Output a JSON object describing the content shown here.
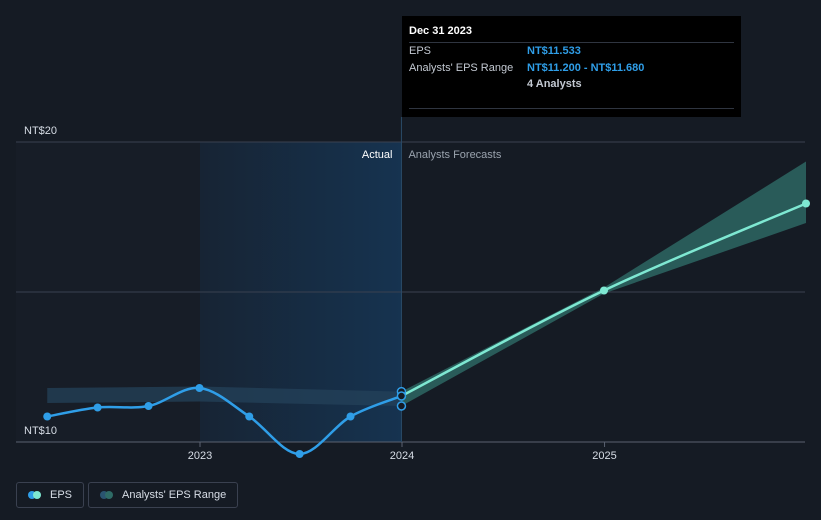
{
  "tooltip": {
    "date": "Dec 31 2023",
    "eps_label": "EPS",
    "eps_value": "NT$11.533",
    "range_label": "Analysts' EPS Range",
    "range_value": "NT$11.200 - NT$11.680",
    "analysts": "4 Analysts"
  },
  "legend": {
    "eps_label": "EPS",
    "range_label": "Analysts' EPS Range"
  },
  "colors": {
    "background": "#151b24",
    "actual_line": "#2f9ee8",
    "forecast_line": "#7ee8d2",
    "forecast_band": "#2e6b66",
    "actual_band": "#1c3a52",
    "grid": "#3a4150"
  },
  "chart_data": {
    "type": "line",
    "title": "",
    "xlabel": "",
    "ylabel": "",
    "ylim": [
      10,
      20
    ],
    "y_ticks": [
      {
        "value": 20,
        "label": "NT$20"
      },
      {
        "value": 10,
        "label": "NT$10"
      }
    ],
    "x_ticks": [
      {
        "value": "2023-01-01",
        "label": "2023"
      },
      {
        "value": "2024-01-01",
        "label": "2024"
      },
      {
        "value": "2025-01-01",
        "label": "2025"
      }
    ],
    "sections": {
      "actual_label": "Actual",
      "forecast_label": "Analysts Forecasts"
    },
    "series": [
      {
        "name": "EPS",
        "kind": "actual",
        "points": [
          {
            "x": "2022-03-31",
            "y": 10.85
          },
          {
            "x": "2022-06-30",
            "y": 11.15
          },
          {
            "x": "2022-09-30",
            "y": 11.2
          },
          {
            "x": "2022-12-31",
            "y": 11.8
          },
          {
            "x": "2023-03-31",
            "y": 10.85
          },
          {
            "x": "2023-06-30",
            "y": 9.6
          },
          {
            "x": "2023-09-30",
            "y": 10.85
          },
          {
            "x": "2023-12-31",
            "y": 11.533
          }
        ]
      },
      {
        "name": "EPS",
        "kind": "forecast",
        "points": [
          {
            "x": "2023-12-31",
            "y": 11.533
          },
          {
            "x": "2024-12-31",
            "y": 15.05
          },
          {
            "x": "2025-12-31",
            "y": 17.95
          }
        ]
      },
      {
        "name": "Analysts' EPS Range",
        "kind": "range",
        "points": [
          {
            "x": "2022-12-31",
            "low": 11.35,
            "high": 11.85
          },
          {
            "x": "2023-12-31",
            "low": 11.2,
            "high": 11.68
          },
          {
            "x": "2024-12-31",
            "low": 14.95,
            "high": 15.15
          },
          {
            "x": "2025-12-31",
            "low": 17.3,
            "high": 19.35
          }
        ]
      }
    ],
    "highlight": {
      "x": "2023-12-31",
      "eps": 11.533,
      "low": 11.2,
      "high": 11.68
    }
  }
}
